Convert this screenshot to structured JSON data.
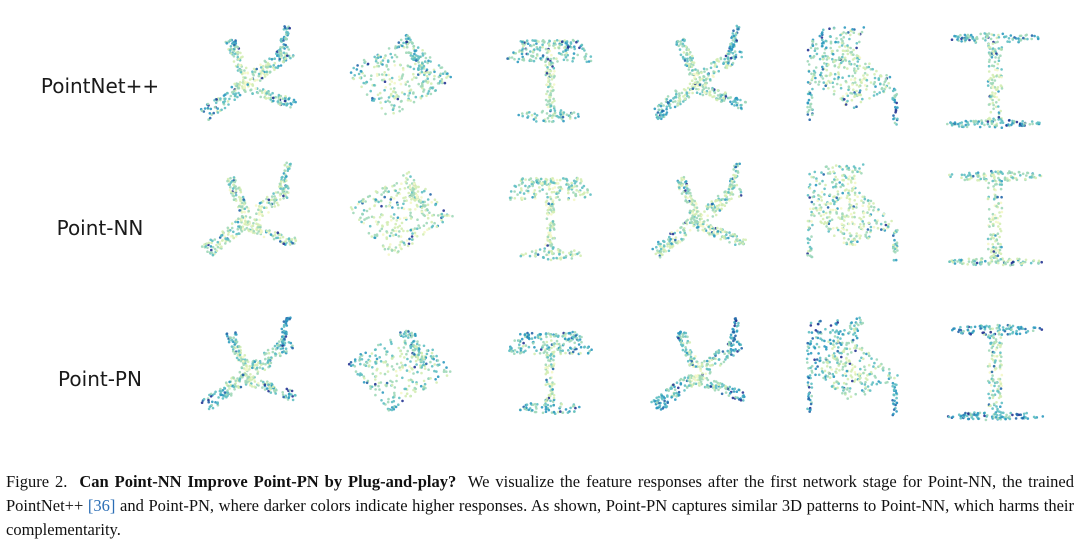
{
  "figure": {
    "row_labels": [
      "PointNet++",
      "Point-NN",
      "Point-PN"
    ],
    "columns": [
      "airplane",
      "bed",
      "table",
      "airplane",
      "chair",
      "table"
    ],
    "colormap": [
      "#f4f7c8",
      "#d4edb4",
      "#a0d8b9",
      "#5fbfc3",
      "#2e9ac0",
      "#2366aa",
      "#253494"
    ]
  },
  "caption": {
    "prefix": "Figure 2.",
    "title": "Can Point-NN Improve Point-PN by Plug-and-play?",
    "text_1": "We visualize the feature responses after the first network stage for Point-NN, the trained PointNet++ ",
    "cite": "[36]",
    "text_2": " and Point-PN, where darker colors indicate higher responses. As shown, Point-PN captures similar 3D patterns to Point-NN, which harms their complementarity."
  }
}
